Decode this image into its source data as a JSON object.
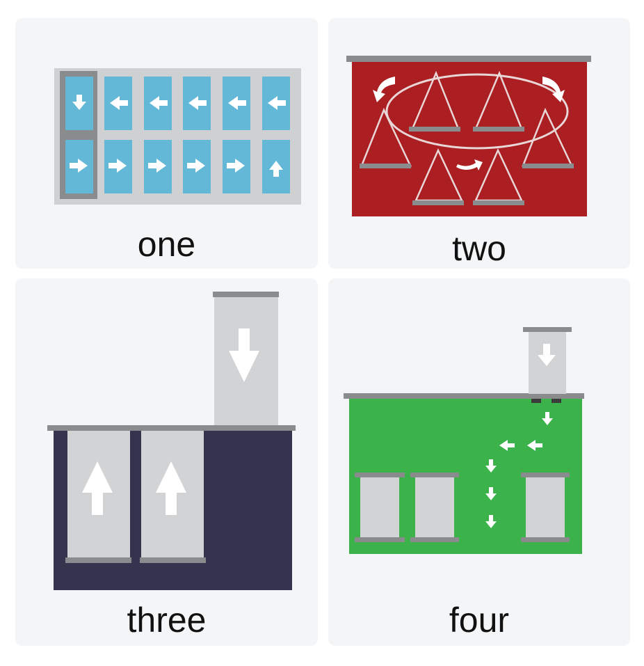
{
  "panels": [
    {
      "label": "one"
    },
    {
      "label": "two"
    },
    {
      "label": "three"
    },
    {
      "label": "four"
    }
  ],
  "colors": {
    "card_bg": "#f4f5f7",
    "tile_blue": "#63b8d8",
    "frame_grey": "#cfd0d2",
    "bar_grey": "#8a8b8d",
    "red": "#ab1e22",
    "navy": "#35344f",
    "green": "#3bb34a",
    "light_grey": "#d2d3d5"
  }
}
